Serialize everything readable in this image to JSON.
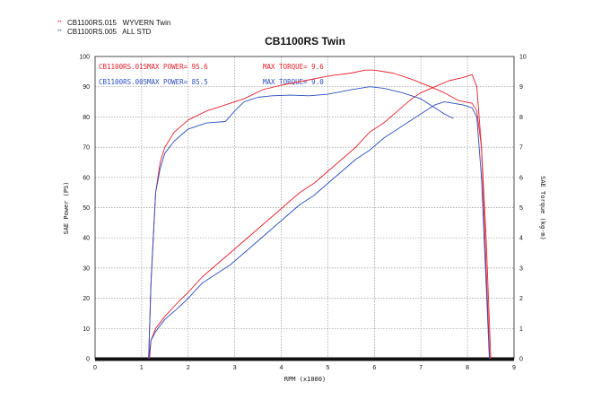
{
  "chart_data": {
    "type": "line",
    "title": "CB1100RS Twin",
    "xlabel": "RPM (x1000)",
    "ylabel_left": "SAE Power (PS)",
    "ylabel_right": "SAE Torque (kg-m)",
    "xlim": [
      0,
      9
    ],
    "ylim_left": [
      0,
      100
    ],
    "ylim_right": [
      0,
      10
    ],
    "x_ticks": [
      "0",
      "1",
      "2",
      "3",
      "4",
      "5",
      "6",
      "7",
      "8",
      "9"
    ],
    "y_ticks_left": [
      "0",
      "10",
      "20",
      "30",
      "40",
      "50",
      "60",
      "70",
      "80",
      "90",
      "100"
    ],
    "y_ticks_right": [
      "0",
      "1",
      "2",
      "3",
      "4",
      "5",
      "6",
      "7",
      "8",
      "9",
      "10"
    ],
    "grid": true,
    "legend": [
      {
        "label": "CB1100RS.015   WYVERN Twin",
        "color": "#e8202a"
      },
      {
        "label": "CB1100RS.005   ALL STD",
        "color": "#2a4fbf"
      }
    ],
    "annotations": [
      {
        "name": "CB1100RS.015",
        "power": "MAX POWER= 95.6",
        "torque": "MAX TORQUE= 9.6",
        "color": "#e8202a"
      },
      {
        "name": "CB1100RS.005",
        "power": "MAX POWER= 85.5",
        "torque": "MAX TORQUE= 9.0",
        "color": "#2a4fbf"
      }
    ],
    "series": [
      {
        "name": "CB1100RS.015",
        "kind": "power",
        "axis": "left",
        "color": "#e8202a",
        "x": [
          1.17,
          1.2,
          1.3,
          1.5,
          1.8,
          2.0,
          2.3,
          2.6,
          2.9,
          3.2,
          3.5,
          3.8,
          4.1,
          4.4,
          4.7,
          5.0,
          5.3,
          5.6,
          5.9,
          6.2,
          6.5,
          6.8,
          7.0,
          7.3,
          7.6,
          7.9,
          8.1,
          8.2,
          8.3,
          8.4,
          8.48
        ],
        "y": [
          0,
          6,
          10,
          14,
          19,
          22,
          27,
          31,
          35,
          39,
          43,
          47,
          51,
          55,
          58,
          62,
          66,
          70,
          75,
          78,
          82,
          86,
          88,
          90,
          92,
          93,
          94,
          90,
          70,
          30,
          0
        ]
      },
      {
        "name": "CB1100RS.015",
        "kind": "torque",
        "axis": "right",
        "color": "#e8202a",
        "x": [
          1.15,
          1.2,
          1.3,
          1.4,
          1.5,
          1.7,
          2.0,
          2.4,
          2.8,
          3.2,
          3.6,
          4.0,
          4.5,
          5.0,
          5.5,
          5.8,
          6.0,
          6.4,
          6.8,
          7.2,
          7.5,
          7.8,
          8.1,
          8.2,
          8.3,
          8.4,
          8.5
        ],
        "y": [
          0,
          2.5,
          5.5,
          6.5,
          7.0,
          7.5,
          7.9,
          8.2,
          8.4,
          8.6,
          8.9,
          9.05,
          9.2,
          9.35,
          9.45,
          9.55,
          9.55,
          9.45,
          9.25,
          9.0,
          8.8,
          8.55,
          8.45,
          8.2,
          7.0,
          4.0,
          0
        ]
      },
      {
        "name": "CB1100RS.005",
        "kind": "power",
        "axis": "left",
        "color": "#2a4fbf",
        "x": [
          1.15,
          1.2,
          1.3,
          1.5,
          1.8,
          2.0,
          2.3,
          2.6,
          2.9,
          3.2,
          3.5,
          3.8,
          4.1,
          4.4,
          4.7,
          5.0,
          5.3,
          5.6,
          5.9,
          6.2,
          6.5,
          6.8,
          7.0,
          7.3,
          7.5,
          7.7,
          7.9,
          8.1,
          8.2,
          8.3,
          8.4,
          8.47
        ],
        "y": [
          0,
          6,
          9,
          13,
          17,
          20,
          25,
          28,
          31,
          35,
          39,
          43,
          47,
          51,
          54,
          58,
          62,
          66,
          69,
          73,
          76,
          79,
          81,
          84,
          85,
          84.5,
          84,
          83,
          80,
          60,
          25,
          0
        ]
      },
      {
        "name": "CB1100RS.005",
        "kind": "torque",
        "axis": "right",
        "color": "#2a4fbf",
        "x": [
          1.15,
          1.2,
          1.3,
          1.4,
          1.5,
          1.7,
          2.0,
          2.4,
          2.8,
          3.0,
          3.2,
          3.5,
          3.8,
          4.2,
          4.6,
          5.0,
          5.5,
          5.9,
          6.2,
          6.6,
          7.0,
          7.3,
          7.5,
          7.7
        ],
        "y": [
          0,
          2.5,
          5.5,
          6.3,
          6.8,
          7.2,
          7.6,
          7.8,
          7.85,
          8.2,
          8.5,
          8.65,
          8.7,
          8.72,
          8.7,
          8.75,
          8.9,
          9.0,
          8.95,
          8.8,
          8.6,
          8.3,
          8.1,
          7.95
        ]
      }
    ]
  }
}
